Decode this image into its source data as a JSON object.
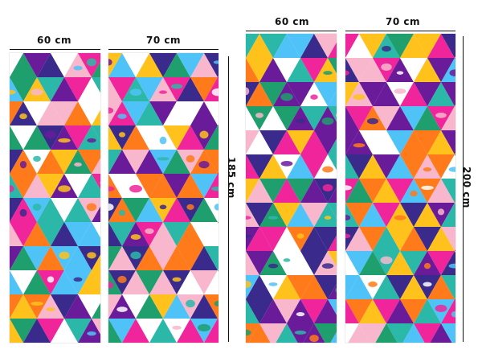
{
  "set_a": {
    "panel1_width_label": "60 cm",
    "panel2_width_label": "70 cm",
    "height_label": "185 cm"
  },
  "set_b": {
    "panel1_width_label": "60 cm",
    "panel2_width_label": "70 cm",
    "height_label": "200 cm"
  },
  "colors": {
    "palette": [
      "#f0249b",
      "#6a1b9a",
      "#2bb8a8",
      "#ffc21c",
      "#4fc3f7",
      "#ffffff",
      "#f8b7cc",
      "#3a2a8c",
      "#ff7a1a",
      "#1f9e6e"
    ],
    "dimension_lines": "#111111"
  }
}
